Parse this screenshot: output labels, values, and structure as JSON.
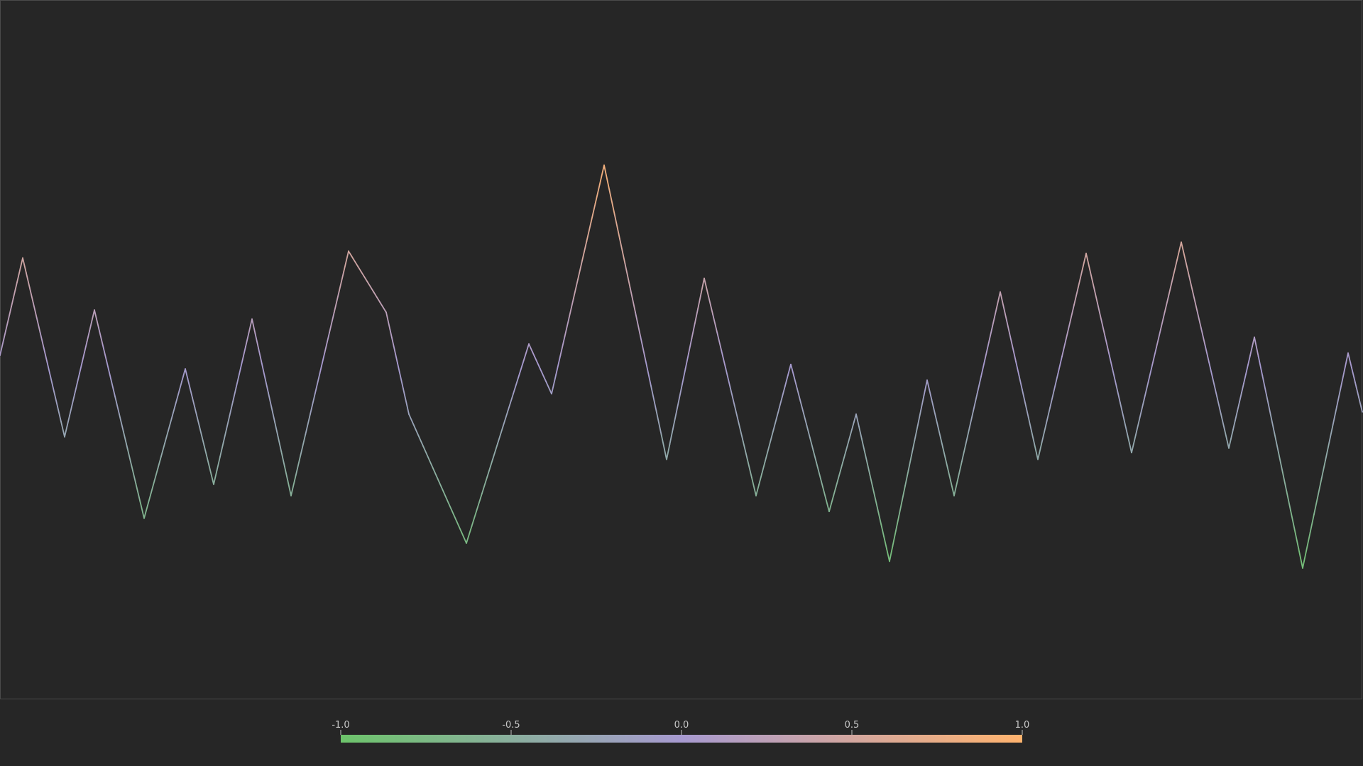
{
  "chart_data": {
    "type": "line",
    "title": "",
    "xlabel": "",
    "ylabel": "",
    "grid": false,
    "colors": {
      "background": "#262626",
      "frame": "#4a4a4a",
      "low": "#6dc46b",
      "mid": "#a79ad0",
      "high": "#ffb36e",
      "tick": "#bdbdbd"
    },
    "xlim": [
      0,
      1919
    ],
    "ylim": [
      -1.47,
      1.62
    ],
    "series": [
      {
        "x": [
          0,
          32,
          91,
          133,
          203,
          261,
          301,
          355,
          410,
          491,
          544,
          576,
          657,
          745,
          777,
          851,
          939,
          992,
          1065,
          1114,
          1168,
          1206,
          1253,
          1306,
          1344,
          1409,
          1462,
          1530,
          1594,
          1664,
          1731,
          1767,
          1835,
          1899,
          1919
        ],
        "y": [
          0.05,
          0.48,
          -0.31,
          0.25,
          -0.67,
          -0.01,
          -0.52,
          0.21,
          -0.57,
          0.51,
          0.24,
          -0.21,
          -0.78,
          0.1,
          -0.12,
          0.89,
          -0.41,
          0.39,
          -0.57,
          0.01,
          -0.64,
          -0.21,
          -0.86,
          -0.06,
          -0.57,
          0.33,
          -0.41,
          0.5,
          -0.38,
          0.55,
          -0.36,
          0.13,
          -0.89,
          0.06,
          -0.2
        ]
      }
    ],
    "colorbar": {
      "min": -1.0,
      "max": 1.0,
      "ticks": [
        -1.0,
        -0.5,
        0.0,
        0.5,
        1.0
      ],
      "tick_labels": [
        "-1.0",
        "-0.5",
        "0.0",
        "0.5",
        "1.0"
      ]
    }
  }
}
